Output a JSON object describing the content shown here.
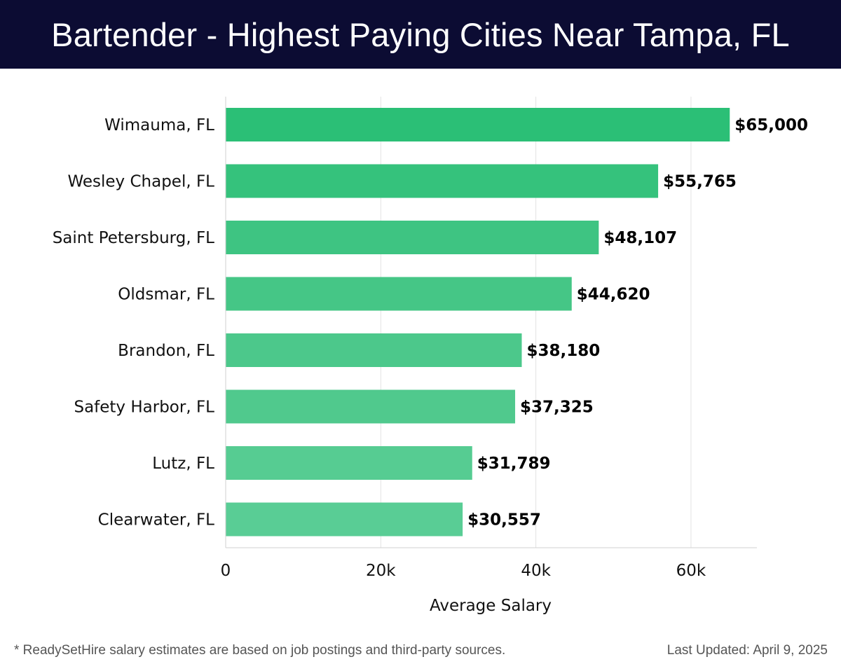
{
  "header": {
    "title": "Bartender - Highest Paying Cities Near Tampa, FL"
  },
  "chart_data": {
    "type": "bar",
    "orientation": "horizontal",
    "title": "Bartender - Highest Paying Cities Near Tampa, FL",
    "categories": [
      "Wimauma, FL",
      "Wesley Chapel, FL",
      "Saint Petersburg, FL",
      "Oldsmar, FL",
      "Brandon, FL",
      "Safety Harbor, FL",
      "Lutz, FL",
      "Clearwater, FL"
    ],
    "values": [
      65000,
      55765,
      48107,
      44620,
      38180,
      37325,
      31789,
      30557
    ],
    "value_labels": [
      "$65,000",
      "$55,765",
      "$48,107",
      "$44,620",
      "$38,180",
      "$37,325",
      "$31,789",
      "$30,557"
    ],
    "xlabel": "Average Salary",
    "ylabel": "",
    "xticks": [
      0,
      20000,
      40000,
      60000
    ],
    "xtick_labels": [
      "0",
      "20k",
      "40k",
      "60k"
    ],
    "xlim": [
      0,
      68500
    ],
    "grid": true,
    "colors": [
      "#2bbf76",
      "#35c27c",
      "#3ec482",
      "#45c686",
      "#4cc88b",
      "#50c98d",
      "#56cc92",
      "#59cd95"
    ]
  },
  "footer": {
    "note": "* ReadySetHire salary estimates are based on job postings and third-party sources.",
    "updated": "Last Updated: April 9, 2025"
  }
}
